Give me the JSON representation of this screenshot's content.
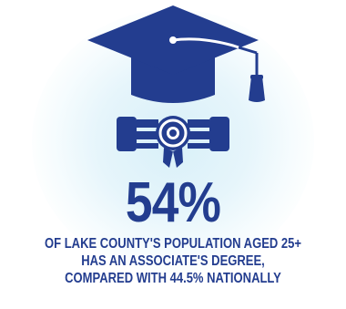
{
  "stat": {
    "value": "54%"
  },
  "caption": {
    "lines": [
      "OF LAKE COUNTY'S POPULATION AGED 25+",
      "HAS AN ASSOCIATE'S DEGREE,",
      "COMPARED WITH 44.5% NATIONALLY"
    ]
  },
  "icons": {
    "cap": "graduation-cap-icon",
    "diploma": "diploma-scroll-icon"
  },
  "colors": {
    "primary": "#233d8f",
    "glow": "#d8f0f8",
    "background": "#ffffff"
  }
}
